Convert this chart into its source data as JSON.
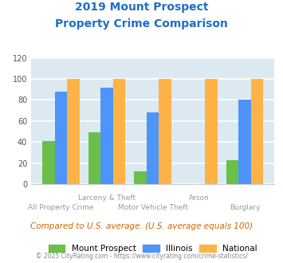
{
  "title_line1": "2019 Mount Prospect",
  "title_line2": "Property Crime Comparison",
  "title_color": "#1e6ec8",
  "categories": [
    "All Property Crime",
    "Larceny & Theft",
    "Motor Vehicle Theft",
    "Arson",
    "Burglary"
  ],
  "top_labels": [
    "",
    "Larceny & Theft",
    "",
    "Arson",
    ""
  ],
  "bottom_labels": [
    "All Property Crime",
    "",
    "Motor Vehicle Theft",
    "",
    "Burglary"
  ],
  "mount_prospect": [
    41,
    49,
    12,
    0,
    23
  ],
  "illinois": [
    88,
    92,
    68,
    0,
    80
  ],
  "national": [
    100,
    100,
    100,
    100,
    100
  ],
  "colors": {
    "mount_prospect": "#6abf4b",
    "illinois": "#4d94fb",
    "national": "#ffb347"
  },
  "ylim": [
    0,
    120
  ],
  "yticks": [
    0,
    20,
    40,
    60,
    80,
    100,
    120
  ],
  "bg_color": "#dce9f0",
  "grid_color": "#ffffff",
  "note": "Compared to U.S. average. (U.S. average equals 100)",
  "note_color": "#cc6600",
  "footer": "© 2025 CityRating.com - https://www.cityrating.com/crime-statistics/",
  "footer_color": "#888888",
  "legend_labels": [
    "Mount Prospect",
    "Illinois",
    "National"
  ]
}
